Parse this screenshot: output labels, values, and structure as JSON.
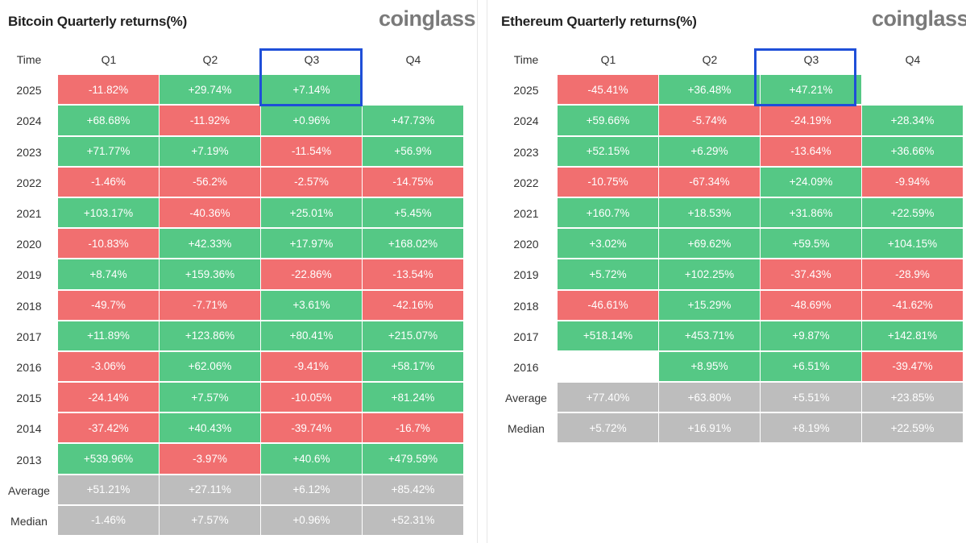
{
  "chart_data": [
    {
      "type": "table",
      "title": "Bitcoin Quarterly returns(%)",
      "brand": "coinglass",
      "columns": [
        "Time",
        "Q1",
        "Q2",
        "Q3",
        "Q4"
      ],
      "highlight_column": "Q3",
      "rows": [
        {
          "label": "2025",
          "values": [
            "-11.82%",
            "+29.74%",
            "+7.14%",
            ""
          ]
        },
        {
          "label": "2024",
          "values": [
            "+68.68%",
            "-11.92%",
            "+0.96%",
            "+47.73%"
          ]
        },
        {
          "label": "2023",
          "values": [
            "+71.77%",
            "+7.19%",
            "-11.54%",
            "+56.9%"
          ]
        },
        {
          "label": "2022",
          "values": [
            "-1.46%",
            "-56.2%",
            "-2.57%",
            "-14.75%"
          ]
        },
        {
          "label": "2021",
          "values": [
            "+103.17%",
            "-40.36%",
            "+25.01%",
            "+5.45%"
          ]
        },
        {
          "label": "2020",
          "values": [
            "-10.83%",
            "+42.33%",
            "+17.97%",
            "+168.02%"
          ]
        },
        {
          "label": "2019",
          "values": [
            "+8.74%",
            "+159.36%",
            "-22.86%",
            "-13.54%"
          ]
        },
        {
          "label": "2018",
          "values": [
            "-49.7%",
            "-7.71%",
            "+3.61%",
            "-42.16%"
          ]
        },
        {
          "label": "2017",
          "values": [
            "+11.89%",
            "+123.86%",
            "+80.41%",
            "+215.07%"
          ]
        },
        {
          "label": "2016",
          "values": [
            "-3.06%",
            "+62.06%",
            "-9.41%",
            "+58.17%"
          ]
        },
        {
          "label": "2015",
          "values": [
            "-24.14%",
            "+7.57%",
            "-10.05%",
            "+81.24%"
          ]
        },
        {
          "label": "2014",
          "values": [
            "-37.42%",
            "+40.43%",
            "-39.74%",
            "-16.7%"
          ]
        },
        {
          "label": "2013",
          "values": [
            "+539.96%",
            "-3.97%",
            "+40.6%",
            "+479.59%"
          ]
        },
        {
          "label": "Average",
          "summary": true,
          "values": [
            "+51.21%",
            "+27.11%",
            "+6.12%",
            "+85.42%"
          ]
        },
        {
          "label": "Median",
          "summary": true,
          "values": [
            "-1.46%",
            "+7.57%",
            "+0.96%",
            "+52.31%"
          ]
        }
      ]
    },
    {
      "type": "table",
      "title": "Ethereum Quarterly returns(%)",
      "brand": "coinglass",
      "columns": [
        "Time",
        "Q1",
        "Q2",
        "Q3",
        "Q4"
      ],
      "highlight_column": "Q3",
      "rows": [
        {
          "label": "2025",
          "values": [
            "-45.41%",
            "+36.48%",
            "+47.21%",
            ""
          ]
        },
        {
          "label": "2024",
          "values": [
            "+59.66%",
            "-5.74%",
            "-24.19%",
            "+28.34%"
          ]
        },
        {
          "label": "2023",
          "values": [
            "+52.15%",
            "+6.29%",
            "-13.64%",
            "+36.66%"
          ]
        },
        {
          "label": "2022",
          "values": [
            "-10.75%",
            "-67.34%",
            "+24.09%",
            "-9.94%"
          ]
        },
        {
          "label": "2021",
          "values": [
            "+160.7%",
            "+18.53%",
            "+31.86%",
            "+22.59%"
          ]
        },
        {
          "label": "2020",
          "values": [
            "+3.02%",
            "+69.62%",
            "+59.5%",
            "+104.15%"
          ]
        },
        {
          "label": "2019",
          "values": [
            "+5.72%",
            "+102.25%",
            "-37.43%",
            "-28.9%"
          ]
        },
        {
          "label": "2018",
          "values": [
            "-46.61%",
            "+15.29%",
            "-48.69%",
            "-41.62%"
          ]
        },
        {
          "label": "2017",
          "values": [
            "+518.14%",
            "+453.71%",
            "+9.87%",
            "+142.81%"
          ]
        },
        {
          "label": "2016",
          "values": [
            "",
            "+8.95%",
            "+6.51%",
            "-39.47%"
          ]
        },
        {
          "label": "Average",
          "summary": true,
          "values": [
            "+77.40%",
            "+63.80%",
            "+5.51%",
            "+23.85%"
          ]
        },
        {
          "label": "Median",
          "summary": true,
          "values": [
            "+5.72%",
            "+16.91%",
            "+8.19%",
            "+22.59%"
          ]
        }
      ]
    }
  ],
  "colors": {
    "positive": "#55c885",
    "negative": "#f16f70",
    "summary": "#bdbdbd",
    "highlight": "#1f4fd8",
    "brand": "#7a7a7a"
  }
}
